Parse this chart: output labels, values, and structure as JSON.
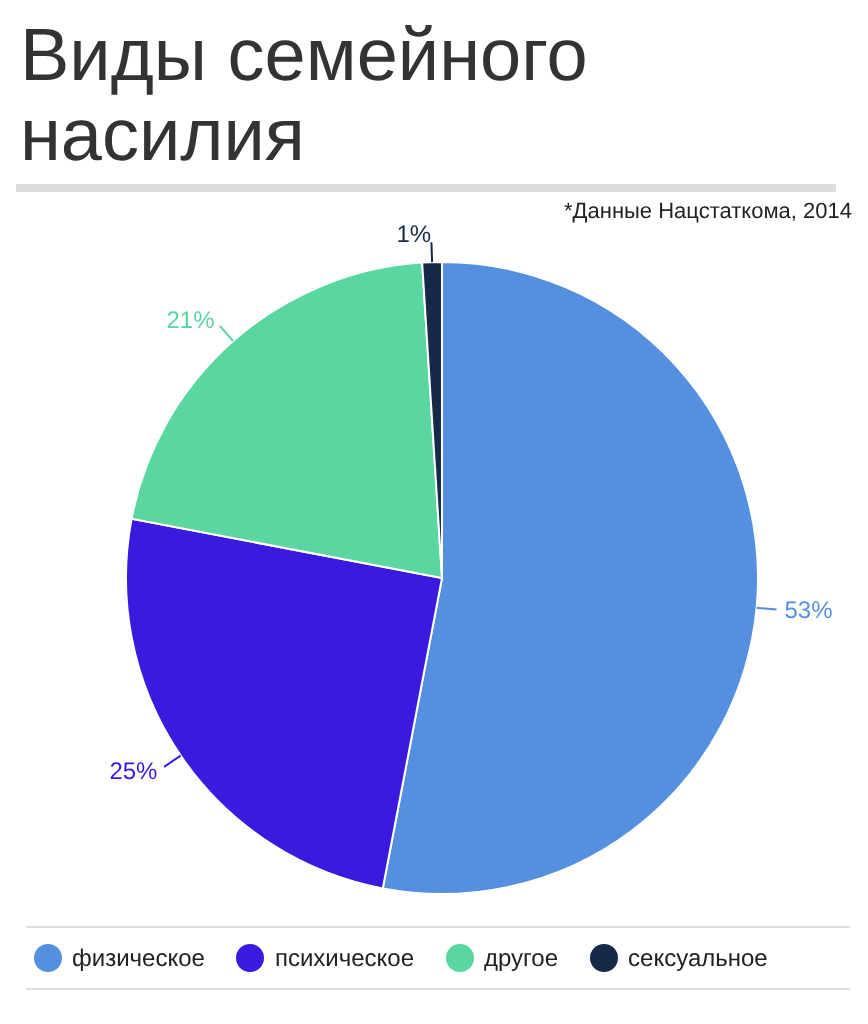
{
  "chart_data": {
    "type": "pie",
    "title": "Виды семейного насилия",
    "annotations": [
      "*Данные Нацстаткома, 2014"
    ],
    "categories": [
      "физическое",
      "психическое",
      "другое",
      "сексуальное"
    ],
    "values": [
      53,
      25,
      21,
      1
    ],
    "value_labels": [
      "53%",
      "25%",
      "21%",
      "1%"
    ],
    "colors": [
      "#5590e0",
      "#3a1adf",
      "#5ad6a0",
      "#162a48"
    ],
    "legend": "bottom"
  }
}
